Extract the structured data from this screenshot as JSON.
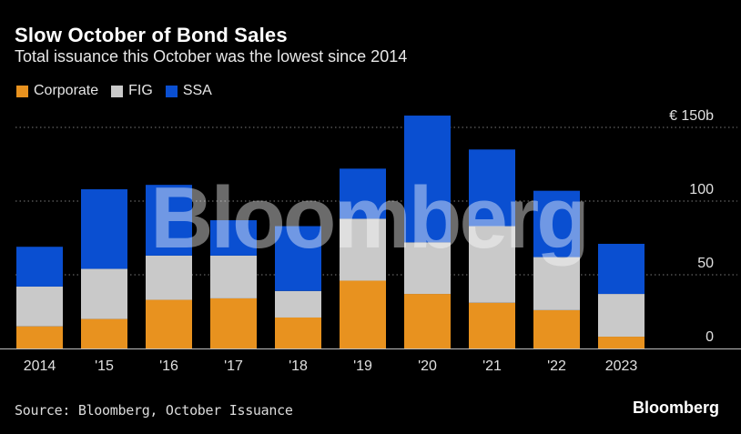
{
  "header": {
    "title": "Slow October of Bond Sales",
    "subtitle": "Total issuance this October was the lowest since 2014"
  },
  "legend": [
    {
      "label": "Corporate",
      "color": "#E8921F"
    },
    {
      "label": "FIG",
      "color": "#C9C9C9"
    },
    {
      "label": "SSA",
      "color": "#0A4FD1"
    }
  ],
  "footer": {
    "source": "Source: Bloomberg, October Issuance",
    "brand": "Bloomberg"
  },
  "watermark": "Bloomberg",
  "chart_data": {
    "type": "bar",
    "stacked": true,
    "title": "Slow October of Bond Sales",
    "subtitle": "Total issuance this October was the lowest since 2014",
    "categories": [
      "2014",
      "'15",
      "'16",
      "'17",
      "'18",
      "'19",
      "'20",
      "'21",
      "'22",
      "2023"
    ],
    "series": [
      {
        "name": "Corporate",
        "color": "#E8921F",
        "values": [
          15,
          20,
          33,
          34,
          21,
          46,
          37,
          31,
          26,
          8
        ]
      },
      {
        "name": "FIG",
        "color": "#C9C9C9",
        "values": [
          27,
          34,
          30,
          29,
          18,
          42,
          35,
          52,
          36,
          29
        ]
      },
      {
        "name": "SSA",
        "color": "#0A4FD1",
        "values": [
          27,
          54,
          48,
          24,
          44,
          34,
          86,
          52,
          45,
          34
        ]
      }
    ],
    "y_ticks": [
      {
        "value": 0,
        "label": "0"
      },
      {
        "value": 50,
        "label": "50"
      },
      {
        "value": 100,
        "label": "100"
      },
      {
        "value": 150,
        "label": "€ 150b"
      }
    ],
    "ylim": [
      0,
      150
    ],
    "unit": "€ billions",
    "gridlines": true,
    "legend_position": "top-left",
    "xlabel": "",
    "ylabel": ""
  }
}
